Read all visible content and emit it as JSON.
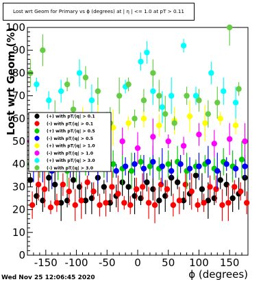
{
  "title": "Lost wrt Geom for Primary vs ϕ (degrees) at | η | <= 1.0 at pT > 0.11",
  "timestamp": "Wed Nov 25 12:06:45 2020",
  "chart_data": {
    "type": "scatter",
    "xlabel": "ϕ (degrees)",
    "ylabel": "Lost wrt Geom (%)",
    "xlim": [
      -180,
      180
    ],
    "ylim": [
      0,
      100
    ],
    "x_ticks": [
      -150,
      -100,
      -50,
      0,
      50,
      100,
      150
    ],
    "y_ticks": [
      0,
      10,
      20,
      30,
      40,
      50,
      60,
      70,
      80,
      90,
      100
    ],
    "grid": false,
    "legend_position": "upper-left",
    "error_bars": true,
    "series": [
      {
        "name": "(+) with pT/|q| > 0.1",
        "color": "#000000",
        "marker": "circle",
        "x": [
          -175,
          -165,
          -155,
          -145,
          -135,
          -125,
          -115,
          -105,
          -95,
          -85,
          -75,
          -65,
          -55,
          -45,
          -35,
          -25,
          -15,
          -5,
          5,
          15,
          25,
          35,
          45,
          55,
          65,
          75,
          85,
          95,
          105,
          115,
          125,
          135,
          145,
          155,
          165,
          175
        ],
        "y": [
          33,
          26,
          24,
          34,
          31,
          23,
          24,
          33,
          30,
          24,
          25,
          34,
          30,
          23,
          26,
          32,
          30,
          26,
          25,
          32,
          29,
          24,
          26,
          34,
          32,
          24,
          27,
          35,
          29,
          24,
          25,
          33,
          31,
          25,
          27,
          34
        ]
      },
      {
        "name": "(-) with pT/|q| > 0.1",
        "color": "#ff0000",
        "marker": "circle",
        "x": [
          -172,
          -162,
          -152,
          -142,
          -132,
          -122,
          -112,
          -102,
          -92,
          -82,
          -72,
          -62,
          -52,
          -42,
          -32,
          -22,
          -12,
          -2,
          8,
          18,
          28,
          38,
          48,
          58,
          68,
          78,
          88,
          98,
          108,
          118,
          128,
          138,
          148,
          158,
          168,
          178
        ],
        "y": [
          22,
          31,
          29,
          21,
          23,
          31,
          28,
          22,
          24,
          32,
          28,
          22,
          23,
          30,
          27,
          23,
          22,
          29,
          30,
          23,
          22,
          31,
          29,
          22,
          24,
          31,
          28,
          22,
          23,
          30,
          29,
          22,
          23,
          30,
          28,
          23
        ]
      },
      {
        "name": "(+) with pT/|q| > 0.5",
        "color": "#00cc00",
        "marker": "circle",
        "x": [
          -175,
          -160,
          -145,
          -130,
          -115,
          -100,
          -85,
          -70,
          -55,
          -40,
          -25,
          -10,
          5,
          20,
          35,
          50,
          65,
          80,
          95,
          110,
          125,
          140,
          155,
          170
        ],
        "y": [
          40,
          38,
          41,
          39,
          37,
          40,
          38,
          41,
          39,
          40,
          38,
          37,
          41,
          39,
          38,
          40,
          41,
          37,
          39,
          40,
          38,
          41,
          39,
          42
        ]
      },
      {
        "name": "(-) with pT/|q| > 0.5",
        "color": "#0000ff",
        "marker": "circle",
        "x": [
          -170,
          -155,
          -140,
          -125,
          -110,
          -95,
          -80,
          -65,
          -50,
          -35,
          -20,
          -5,
          10,
          25,
          40,
          55,
          70,
          85,
          100,
          115,
          130,
          145,
          160,
          175
        ],
        "y": [
          38,
          39,
          37,
          40,
          38,
          39,
          41,
          38,
          40,
          37,
          39,
          40,
          38,
          41,
          39,
          37,
          40,
          38,
          39,
          41,
          37,
          40,
          38,
          39
        ]
      },
      {
        "name": "(+) with pT/|q| > 1.0",
        "color": "#ffff00",
        "marker": "circle",
        "x": [
          -165,
          -140,
          -115,
          -90,
          -65,
          -40,
          -15,
          10,
          35,
          60,
          85,
          110,
          135,
          160
        ],
        "y": [
          60,
          58,
          57,
          59,
          61,
          56,
          58,
          60,
          57,
          59,
          61,
          58,
          60,
          57
        ]
      },
      {
        "name": "(-) with pT/|q| > 1.0",
        "color": "#ff00ff",
        "marker": "circle",
        "x": [
          -175,
          -150,
          -125,
          -100,
          -75,
          -50,
          -25,
          0,
          25,
          50,
          75,
          100,
          125,
          150,
          175
        ],
        "y": [
          50,
          52,
          48,
          53,
          49,
          51,
          50,
          47,
          52,
          50,
          48,
          53,
          49,
          51,
          50
        ]
      },
      {
        "name": "(+) with pT/|q| > 3.0",
        "color": "#00ffff",
        "marker": "circle",
        "x": [
          -165,
          -145,
          -125,
          -95,
          -75,
          -50,
          -20,
          5,
          15,
          25,
          40,
          55,
          75,
          95,
          120,
          140,
          160
        ],
        "y": [
          75,
          68,
          72,
          80,
          68,
          55,
          74,
          85,
          89,
          72,
          65,
          70,
          92,
          70,
          80,
          72,
          67
        ]
      },
      {
        "name": "(-) with pT/|q| > 3.0",
        "color": "#66cc44",
        "marker": "circle",
        "x": [
          -175,
          -155,
          -135,
          -115,
          -105,
          -85,
          -65,
          -45,
          -30,
          -15,
          -5,
          10,
          25,
          35,
          45,
          60,
          80,
          100,
          115,
          130,
          150,
          165
        ],
        "y": [
          80,
          90,
          60,
          75,
          64,
          78,
          72,
          58,
          70,
          75,
          60,
          68,
          80,
          70,
          62,
          58,
          70,
          68,
          62,
          67,
          100,
          73
        ]
      }
    ]
  }
}
